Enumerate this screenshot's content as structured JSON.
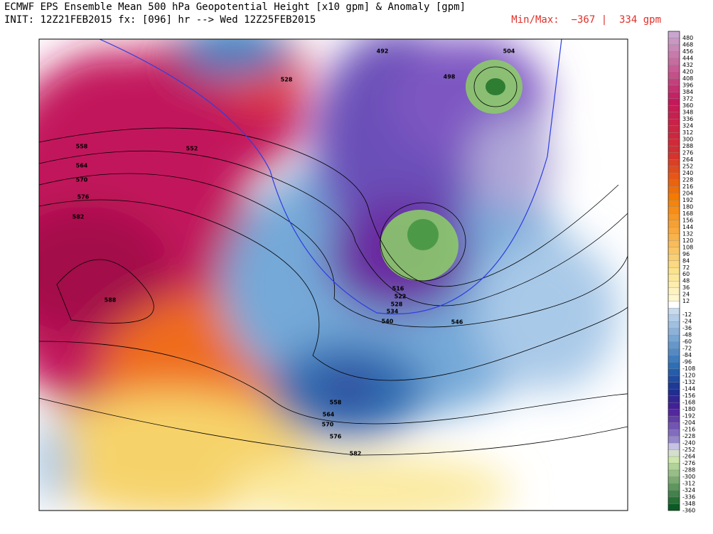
{
  "header": {
    "title": "ECMWF EPS Ensemble Mean 500 hPa Geopotential Height [x10 gpm] & Anomaly [gpm]",
    "init": "INIT: 12Z21FEB2015 fx: [096] hr --> Wed 12Z25FEB2015",
    "minmax": "Min/Max:  −367 |  334 gpm"
  },
  "map": {
    "contour_labels": [
      "492",
      "504",
      "498",
      "528",
      "558",
      "552",
      "564",
      "570",
      "576",
      "582",
      "588",
      "516",
      "522",
      "528",
      "534",
      "540",
      "546",
      "558",
      "564",
      "570",
      "576",
      "582"
    ]
  },
  "colorbar": {
    "labels": [
      "480",
      "468",
      "456",
      "444",
      "432",
      "420",
      "408",
      "396",
      "384",
      "372",
      "360",
      "348",
      "336",
      "324",
      "312",
      "300",
      "288",
      "276",
      "264",
      "252",
      "240",
      "228",
      "216",
      "204",
      "192",
      "180",
      "168",
      "156",
      "144",
      "132",
      "120",
      "108",
      "96",
      "84",
      "72",
      "60",
      "48",
      "36",
      "24",
      "12",
      "-12",
      "-24",
      "-36",
      "-48",
      "-60",
      "-72",
      "-84",
      "-96",
      "-108",
      "-120",
      "-132",
      "-144",
      "-156",
      "-168",
      "-180",
      "-192",
      "-204",
      "-216",
      "-228",
      "-240",
      "-252",
      "-264",
      "-276",
      "-288",
      "-300",
      "-312",
      "-324",
      "-336",
      "-348",
      "-360"
    ]
  }
}
